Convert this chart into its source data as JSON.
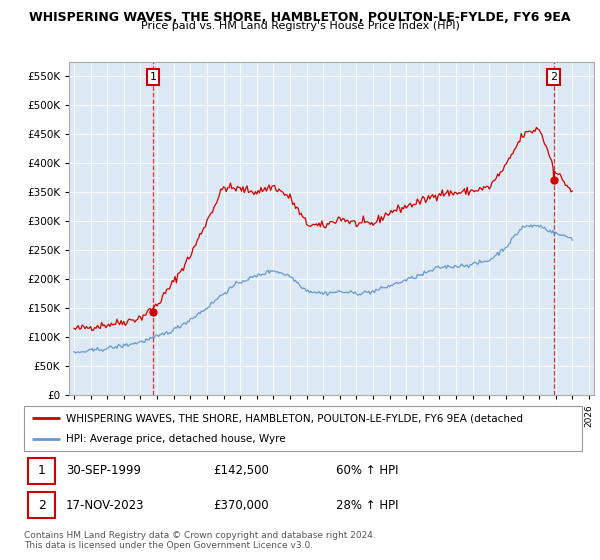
{
  "title": "WHISPERING WAVES, THE SHORE, HAMBLETON, POULTON-LE-FYLDE, FY6 9EA",
  "subtitle": "Price paid vs. HM Land Registry's House Price Index (HPI)",
  "legend_line1": "WHISPERING WAVES, THE SHORE, HAMBLETON, POULTON-LE-FYLDE, FY6 9EA (detached",
  "legend_line2": "HPI: Average price, detached house, Wyre",
  "footer": "Contains HM Land Registry data © Crown copyright and database right 2024.\nThis data is licensed under the Open Government Licence v3.0.",
  "sale1_date": "30-SEP-1999",
  "sale1_price": "£142,500",
  "sale1_hpi": "60% ↑ HPI",
  "sale2_date": "17-NOV-2023",
  "sale2_price": "£370,000",
  "sale2_hpi": "28% ↑ HPI",
  "red_color": "#cc0000",
  "blue_color": "#6699cc",
  "plot_bg": "#dce9f5",
  "grid_color": "#ffffff",
  "ylim_max": 575000,
  "yticks": [
    0,
    50000,
    100000,
    150000,
    200000,
    250000,
    300000,
    350000,
    400000,
    450000,
    500000,
    550000
  ],
  "sale1_x": 1999.75,
  "sale1_y": 142500,
  "sale2_x": 2023.88,
  "sale2_y": 370000,
  "xmin": 1994.7,
  "xmax": 2026.3
}
